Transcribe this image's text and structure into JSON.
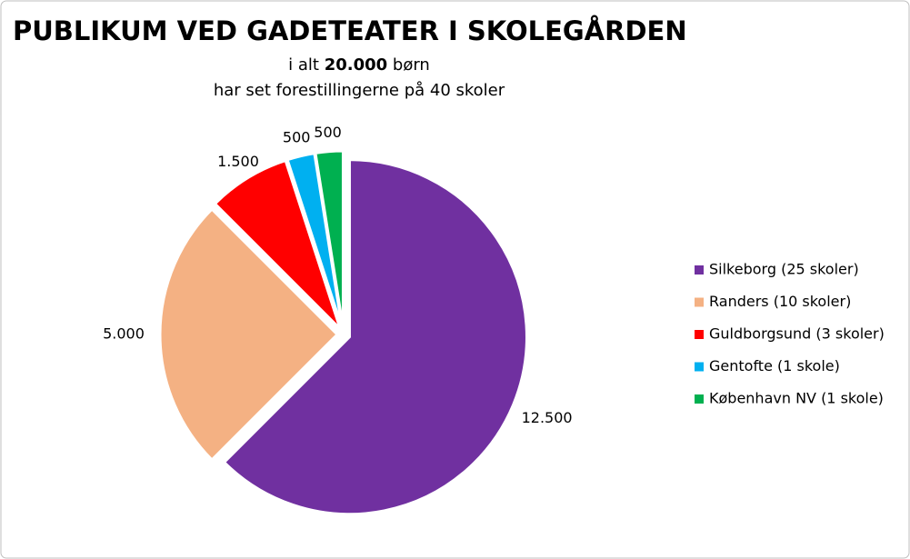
{
  "chart_data": {
    "type": "pie",
    "title": "PUBLIKUM VED GADETEATER I SKOLEGÅRDEN",
    "subtitle": [
      [
        "i alt ",
        "20.000",
        " børn"
      ],
      [
        "har set forestillingerne på 40 skoler"
      ]
    ],
    "categories": [
      "Silkeborg (25 skoler)",
      "Randers (10 skoler)",
      "Guldborgsund (3 skoler)",
      "Gentofte (1 skole)",
      "København NV (1 skole)"
    ],
    "values": [
      12500,
      5000,
      1500,
      500,
      500
    ],
    "value_labels": [
      "12.500",
      "5.000",
      "1.500",
      "500",
      "500"
    ],
    "colors": [
      "#7030a0",
      "#f4b183",
      "#ff0000",
      "#00b0f0",
      "#00b050"
    ],
    "legend": "right"
  }
}
